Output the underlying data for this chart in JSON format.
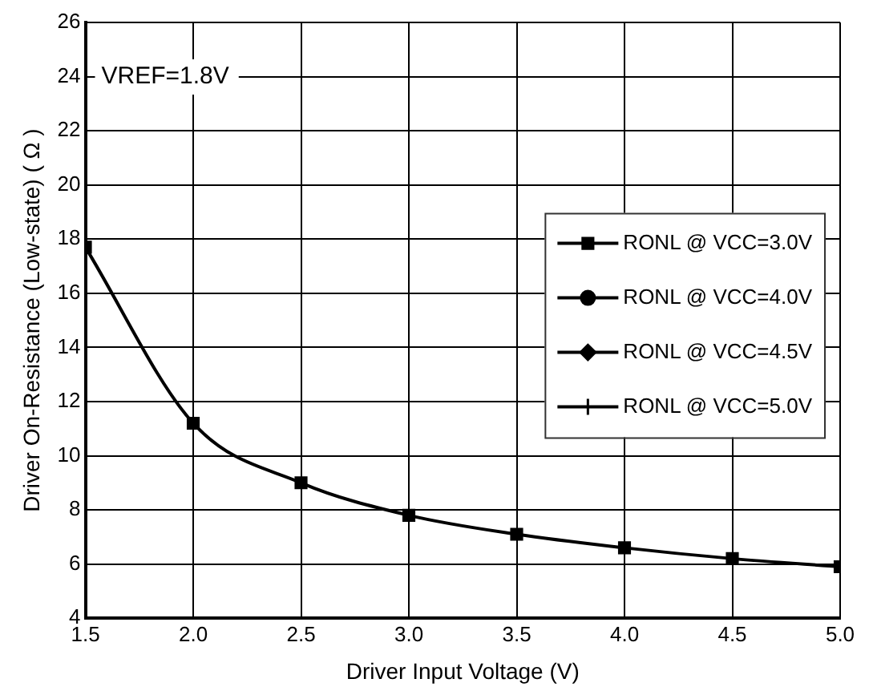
{
  "chart_data": {
    "type": "line",
    "xlabel": "Driver Input Voltage (V)",
    "ylabel": "Driver On-Resistance (Low-state) ( Ω )",
    "x": [
      1.5,
      2.0,
      2.5,
      3.0,
      3.5,
      4.0,
      4.5,
      5.0
    ],
    "series": [
      {
        "name": "RONL @ VCC=3.0V",
        "color": "#000000",
        "marker": "square",
        "values": [
          17.7,
          11.2,
          9.0,
          7.8,
          7.1,
          6.6,
          6.2,
          5.9
        ]
      },
      {
        "name": "RONL @ VCC=4.0V",
        "color": "#000000",
        "marker": "circle",
        "values": [
          null,
          null,
          null,
          null,
          null,
          null,
          null,
          null
        ]
      },
      {
        "name": "RONL @ VCC=4.5V",
        "color": "#000000",
        "marker": "diamond",
        "values": [
          null,
          null,
          null,
          null,
          null,
          null,
          null,
          null
        ]
      },
      {
        "name": "RONL @ VCC=5.0V",
        "color": "#000000",
        "marker": "cross",
        "values": [
          null,
          null,
          null,
          null,
          null,
          null,
          null,
          null
        ]
      }
    ],
    "xlim": [
      1.5,
      5.0
    ],
    "xticks": [
      {
        "value": 1.5,
        "label": "1.5"
      },
      {
        "value": 2.0,
        "label": "2.0"
      },
      {
        "value": 2.5,
        "label": "2.5"
      },
      {
        "value": 3.0,
        "label": "3.0"
      },
      {
        "value": 3.5,
        "label": "3.5"
      },
      {
        "value": 4.0,
        "label": "4.0"
      },
      {
        "value": 4.5,
        "label": "4.5"
      },
      {
        "value": 5.0,
        "label": "5.0"
      }
    ],
    "ylim": [
      4,
      26
    ],
    "yticks": [
      4,
      6,
      8,
      10,
      12,
      14,
      16,
      18,
      20,
      22,
      24,
      26
    ],
    "annotations": [
      "VREF=1.8V"
    ],
    "grid": true,
    "legend": "right",
    "line_style": "solid"
  }
}
